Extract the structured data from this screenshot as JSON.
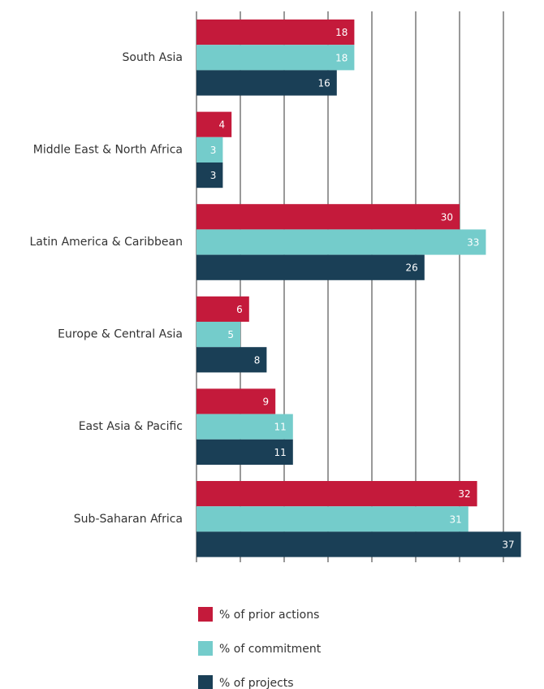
{
  "chart_data": {
    "type": "bar",
    "orientation": "horizontal",
    "categories": [
      "South Asia",
      "Middle East & North Africa",
      "Latin America & Caribbean",
      "Europe & Central Asia",
      "East Asia & Pacific",
      "Sub-Saharan Africa"
    ],
    "series": [
      {
        "name": "% of prior actions",
        "color": "#c41a3b",
        "values": [
          18,
          4,
          30,
          6,
          9,
          32
        ]
      },
      {
        "name": "% of commitment",
        "color": "#74cccb",
        "values": [
          18,
          3,
          33,
          5,
          11,
          31
        ]
      },
      {
        "name": "% of projects",
        "color": "#1a3f56",
        "values": [
          16,
          3,
          26,
          8,
          11,
          37
        ]
      }
    ],
    "xlim": [
      0,
      37
    ],
    "xticks": [
      0,
      5,
      10,
      15,
      20,
      25,
      30,
      35
    ],
    "grid": true,
    "legend": "bottom"
  }
}
